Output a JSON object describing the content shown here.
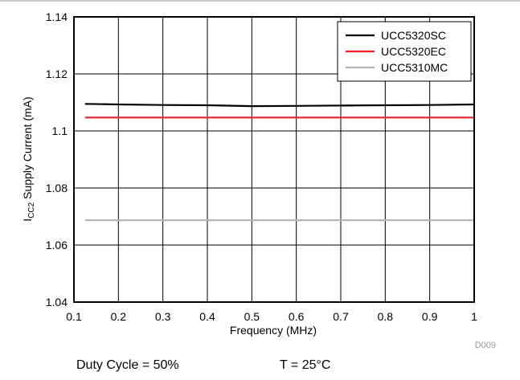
{
  "chart_data": {
    "type": "line",
    "title": "",
    "xlabel": "Frequency (MHz)",
    "ylabel": {
      "prefix": "I",
      "subscript": "CC2",
      "suffix": " Supply Current (mA)"
    },
    "xlim": [
      0.1,
      1.0
    ],
    "ylim": [
      1.04,
      1.14
    ],
    "x_ticks": [
      0.1,
      0.2,
      0.3,
      0.4,
      0.5,
      0.6,
      0.7,
      0.8,
      0.9,
      1.0
    ],
    "x_tick_labels": [
      "0.1",
      "0.2",
      "0.3",
      "0.4",
      "0.5",
      "0.6",
      "0.7",
      "0.8",
      "0.9",
      "1"
    ],
    "y_ticks": [
      1.04,
      1.06,
      1.08,
      1.1,
      1.12,
      1.14
    ],
    "y_tick_labels": [
      "1.04",
      "1.06",
      "1.08",
      "1.1",
      "1.12",
      "1.14"
    ],
    "grid": true,
    "legend_position": "top-right",
    "series": [
      {
        "name": "UCC5320SC",
        "color": "#000000",
        "x": [
          0.125,
          0.2,
          0.3,
          0.4,
          0.5,
          0.6,
          0.7,
          0.8,
          0.9,
          1.0
        ],
        "values": [
          1.1095,
          1.1093,
          1.1091,
          1.109,
          1.1087,
          1.1088,
          1.1089,
          1.109,
          1.1091,
          1.1093
        ]
      },
      {
        "name": "UCC5320EC",
        "color": "#e8202a",
        "x": [
          0.125,
          1.0
        ],
        "values": [
          1.1047,
          1.1047
        ]
      },
      {
        "name": "UCC5310MC",
        "color": "#b4b4b4",
        "x": [
          0.125,
          1.0
        ],
        "values": [
          1.0687,
          1.0687
        ]
      }
    ],
    "figure_id": "D009"
  },
  "conditions": {
    "duty_cycle": "Duty Cycle = 50%",
    "temperature": "T = 25°C"
  }
}
